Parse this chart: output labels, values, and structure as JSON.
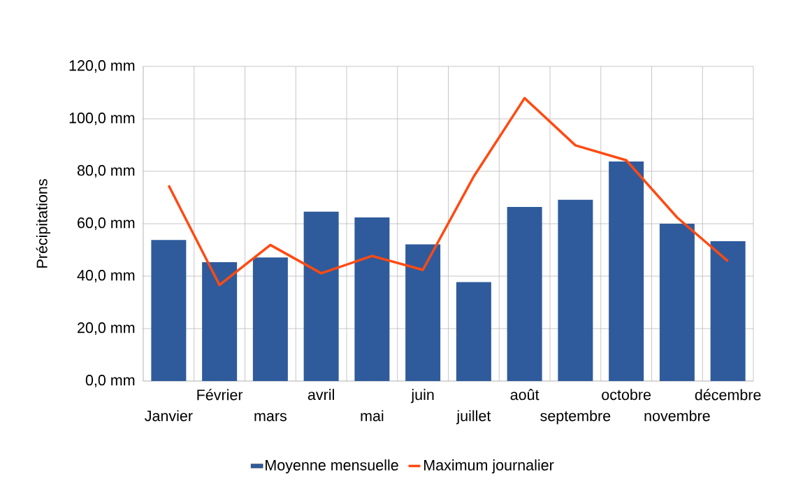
{
  "chart_data": {
    "type": "bar",
    "ylabel": "Précipitations",
    "categories": [
      "Janvier",
      "Février",
      "mars",
      "avril",
      "mai",
      "juin",
      "juillet",
      "août",
      "septembre",
      "octobre",
      "novembre",
      "décembre"
    ],
    "series": [
      {
        "name": "Moyenne mensuelle",
        "type": "bar",
        "color": "#2f5b9c",
        "values": [
          53.8,
          45.3,
          47.1,
          64.6,
          62.4,
          52.1,
          37.7,
          66.4,
          69.1,
          83.7,
          60.0,
          53.3
        ]
      },
      {
        "name": "Maximum journalier",
        "type": "line",
        "color": "#ff4a12",
        "values": [
          74.6,
          36.6,
          51.9,
          41.1,
          47.7,
          42.4,
          78.0,
          107.9,
          89.9,
          84.2,
          62.4,
          45.7
        ]
      }
    ],
    "ylim": [
      0,
      120
    ],
    "yticks": [
      {
        "value": 0,
        "label": "0,0 mm"
      },
      {
        "value": 20,
        "label": "20,0 mm"
      },
      {
        "value": 40,
        "label": "40,0 mm"
      },
      {
        "value": 60,
        "label": "60,0 mm"
      },
      {
        "value": 80,
        "label": "80,0 mm"
      },
      {
        "value": 100,
        "label": "100,0 mm"
      },
      {
        "value": 120,
        "label": "120,0 mm"
      }
    ],
    "grid": true,
    "legend": "bottom",
    "marker": "none",
    "line_style": "solid"
  }
}
